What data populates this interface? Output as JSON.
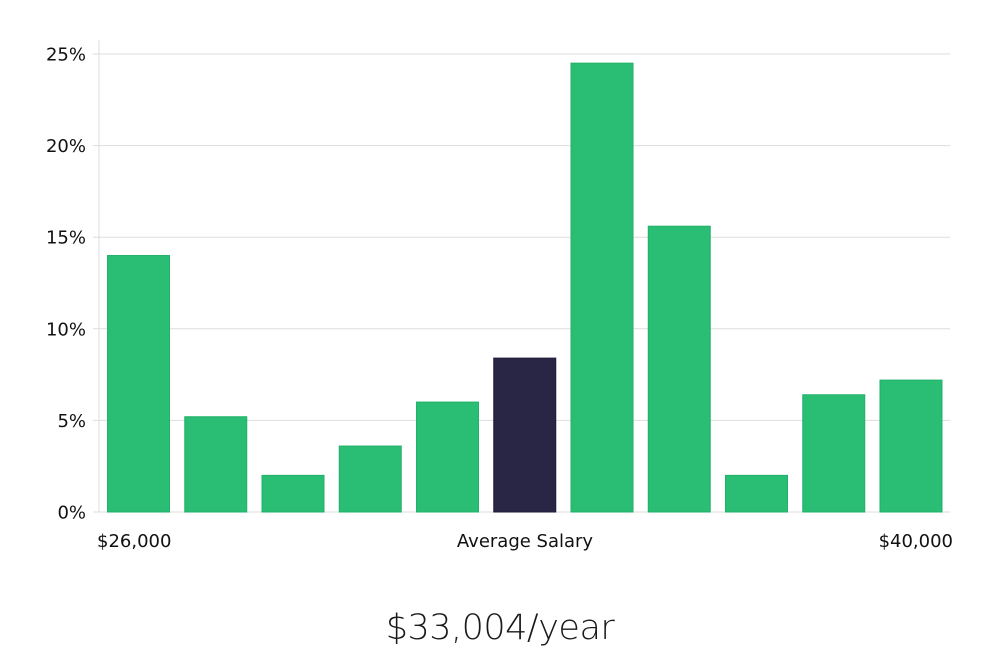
{
  "chart_data": {
    "type": "bar",
    "title": "",
    "xlabel": "",
    "ylabel": "",
    "ylim": [
      0,
      25
    ],
    "yticks": [
      0,
      5,
      10,
      15,
      20,
      25
    ],
    "ytick_format": "{v}%",
    "grid": true,
    "values": [
      14.0,
      5.2,
      2.0,
      3.6,
      6.0,
      8.4,
      24.5,
      15.6,
      2.0,
      6.4,
      7.2
    ],
    "highlight_index": 5,
    "colors": {
      "bar": "#2abd74",
      "highlight": "#292545",
      "grid": "#dddddd",
      "axis": "#dddddd"
    },
    "x_labels": {
      "left": "$26,000",
      "center": "Average Salary",
      "right": "$40,000"
    }
  },
  "summary": {
    "average_salary": "$33,004/year"
  }
}
